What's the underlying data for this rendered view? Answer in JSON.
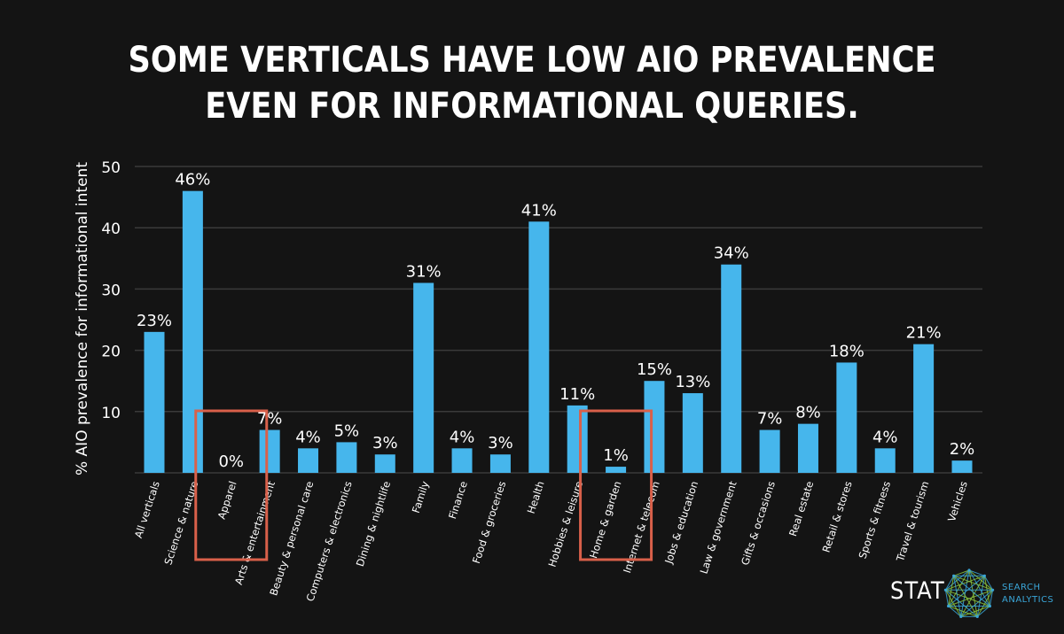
{
  "title": {
    "line1": "SOME VERTICALS HAVE LOW AIO PREVALENCE",
    "line2": "EVEN FOR INFORMATIONAL QUERIES."
  },
  "logo": {
    "name": "STAT",
    "sub1": "SEARCH",
    "sub2": "ANALYTICS"
  },
  "colors": {
    "bar": "#46b6ec",
    "highlight": "#d9604a",
    "grid": "#3a3a3a",
    "background": "#141414"
  },
  "chart_data": {
    "type": "bar",
    "title": "SOME VERTICALS HAVE LOW AIO PREVALENCE EVEN FOR INFORMATIONAL QUERIES.",
    "xlabel": "",
    "ylabel": "% AIO prevalence for informational intent",
    "ylim": [
      0,
      50
    ],
    "yticks": [
      10,
      20,
      30,
      40,
      50
    ],
    "grid": true,
    "categories": [
      "All verticals",
      "Science & nature",
      "Apparel",
      "Arts & entertainment",
      "Beauty & personal care",
      "Computers & electronics",
      "Dining & nightlife",
      "Family",
      "Finance",
      "Food & groceries",
      "Health",
      "Hobbies & leisure",
      "Home & garden",
      "Internet & telecom",
      "Jobs & education",
      "Law & government",
      "Gifts & occasions",
      "Real estate",
      "Retail & stores",
      "Sports & fitness",
      "Travel & tourism",
      "Vehicles"
    ],
    "values": [
      23,
      46,
      0,
      7,
      4,
      5,
      3,
      31,
      4,
      3,
      41,
      11,
      1,
      15,
      13,
      34,
      7,
      8,
      18,
      4,
      21,
      2
    ],
    "labels": [
      "23%",
      "46%",
      "0%",
      "7%",
      "4%",
      "5%",
      "3%",
      "31%",
      "4%",
      "3%",
      "41%",
      "11%",
      "1%",
      "15%",
      "13%",
      "34%",
      "7%",
      "8%",
      "18%",
      "4%",
      "21%",
      "2%"
    ],
    "highlighted": [
      "Apparel",
      "Home & garden"
    ]
  }
}
